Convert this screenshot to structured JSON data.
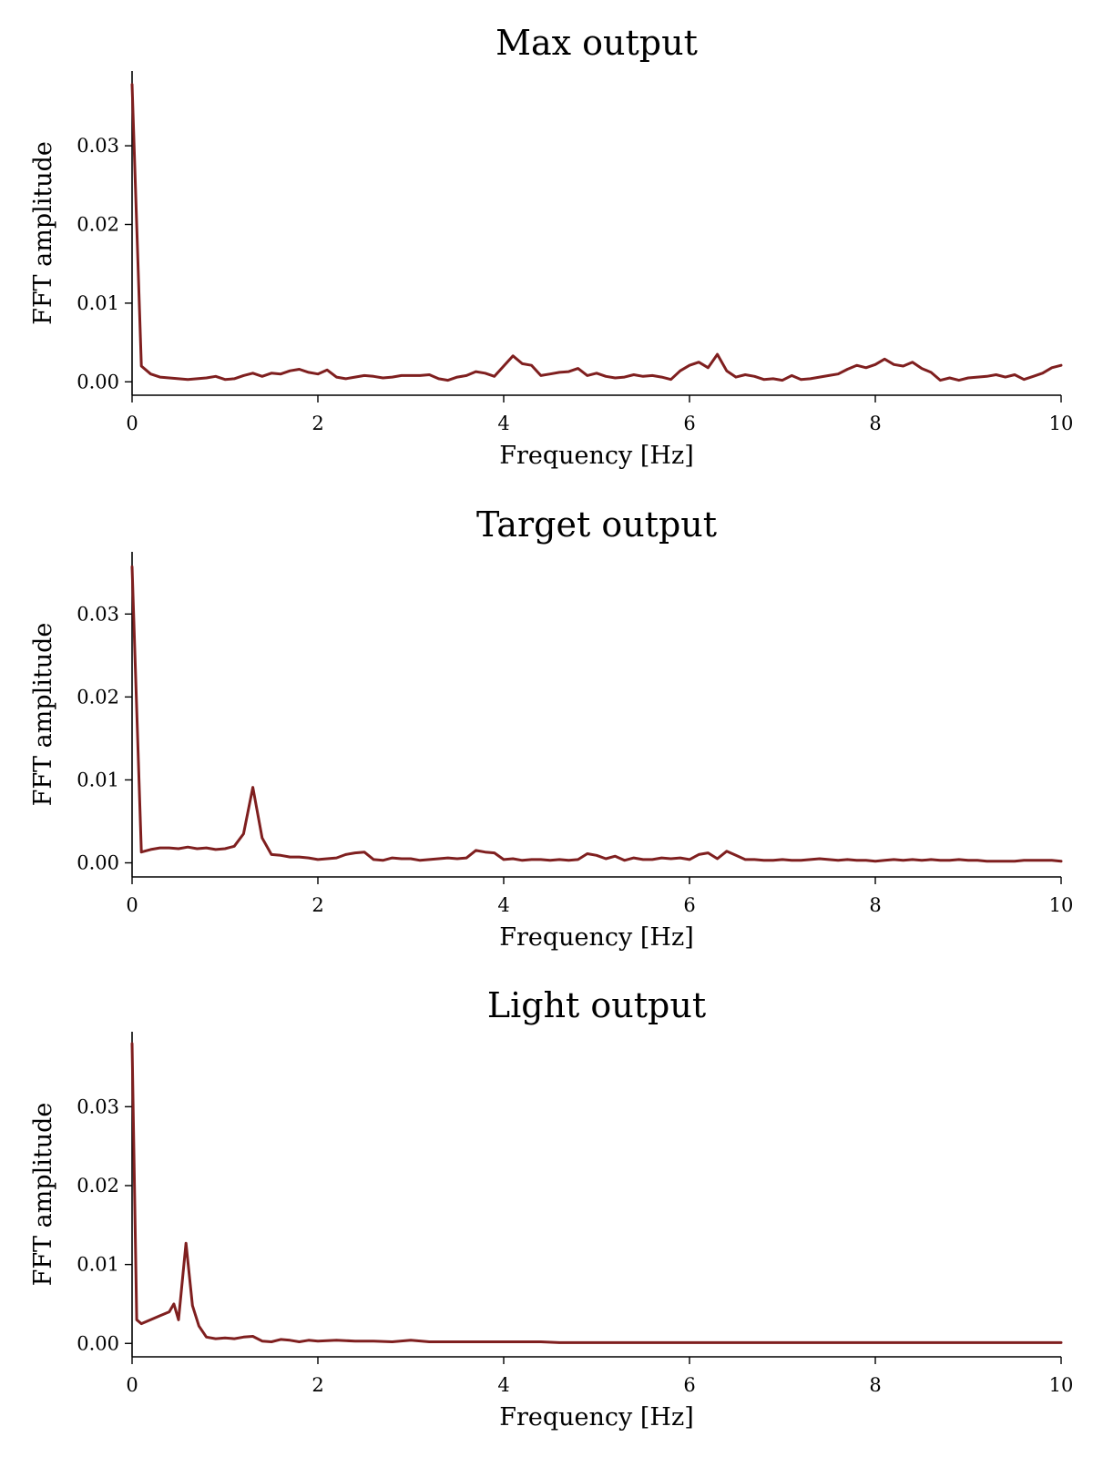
{
  "colors": {
    "line": "#7f1f1f"
  },
  "chart_data": [
    {
      "type": "line",
      "title": "Max output",
      "xlabel": "Frequency [Hz]",
      "ylabel": "FFT amplitude",
      "xlim": [
        0,
        10
      ],
      "ylim": [
        -0.0017,
        0.0395
      ],
      "xticks": [
        0,
        2,
        4,
        6,
        8,
        10
      ],
      "xtick_labels": [
        "0",
        "2",
        "4",
        "6",
        "8",
        "10"
      ],
      "yticks": [
        0,
        0.01,
        0.02,
        0.03
      ],
      "ytick_labels": [
        "0.00",
        "0.01",
        "0.02",
        "0.03"
      ],
      "grid": false,
      "series": [
        {
          "x": [
            0,
            0.1,
            0.2,
            0.3,
            0.4,
            0.5,
            0.6,
            0.7,
            0.8,
            0.9,
            1.0,
            1.1,
            1.2,
            1.3,
            1.4,
            1.5,
            1.6,
            1.7,
            1.8,
            1.9,
            2.0,
            2.1,
            2.2,
            2.3,
            2.4,
            2.5,
            2.6,
            2.7,
            2.8,
            2.9,
            3.0,
            3.1,
            3.2,
            3.3,
            3.4,
            3.5,
            3.6,
            3.7,
            3.8,
            3.9,
            4.0,
            4.1,
            4.2,
            4.3,
            4.4,
            4.5,
            4.6,
            4.7,
            4.8,
            4.9,
            5.0,
            5.1,
            5.2,
            5.3,
            5.4,
            5.5,
            5.6,
            5.7,
            5.8,
            5.9,
            6.0,
            6.1,
            6.2,
            6.3,
            6.4,
            6.5,
            6.6,
            6.7,
            6.8,
            6.9,
            7.0,
            7.1,
            7.2,
            7.3,
            7.4,
            7.5,
            7.6,
            7.7,
            7.8,
            7.9,
            8.0,
            8.1,
            8.2,
            8.3,
            8.4,
            8.5,
            8.6,
            8.7,
            8.8,
            8.9,
            9.0,
            9.1,
            9.2,
            9.3,
            9.4,
            9.5,
            9.6,
            9.7,
            9.8,
            9.9,
            10.0
          ],
          "y": [
            0.0378,
            0.002,
            0.001,
            0.0006,
            0.0005,
            0.0004,
            0.0003,
            0.0004,
            0.0005,
            0.0007,
            0.0003,
            0.0004,
            0.0008,
            0.0011,
            0.0007,
            0.0011,
            0.001,
            0.0014,
            0.0016,
            0.0012,
            0.001,
            0.0015,
            0.0006,
            0.0004,
            0.0006,
            0.0008,
            0.0007,
            0.0005,
            0.0006,
            0.0008,
            0.0008,
            0.0008,
            0.0009,
            0.0004,
            0.0002,
            0.0006,
            0.0008,
            0.0013,
            0.0011,
            0.0007,
            0.002,
            0.0033,
            0.0023,
            0.0021,
            0.0008,
            0.001,
            0.0012,
            0.0013,
            0.0017,
            0.0008,
            0.0011,
            0.0007,
            0.0005,
            0.0006,
            0.0009,
            0.0007,
            0.0008,
            0.0006,
            0.0003,
            0.0014,
            0.0021,
            0.0025,
            0.0018,
            0.0035,
            0.0014,
            0.0006,
            0.0009,
            0.0007,
            0.0003,
            0.0004,
            0.0002,
            0.0008,
            0.0003,
            0.0004,
            0.0006,
            0.0008,
            0.001,
            0.0016,
            0.0021,
            0.0018,
            0.0022,
            0.0029,
            0.0022,
            0.002,
            0.0025,
            0.0017,
            0.0012,
            0.0002,
            0.0005,
            0.0002,
            0.0005,
            0.0006,
            0.0007,
            0.0009,
            0.0006,
            0.0009,
            0.0003,
            0.0007,
            0.0011,
            0.0018,
            0.0021
          ]
        }
      ]
    },
    {
      "type": "line",
      "title": "Target output",
      "xlabel": "Frequency [Hz]",
      "ylabel": "FFT amplitude",
      "xlim": [
        0,
        10
      ],
      "ylim": [
        -0.0017,
        0.0375
      ],
      "xticks": [
        0,
        2,
        4,
        6,
        8,
        10
      ],
      "xtick_labels": [
        "0",
        "2",
        "4",
        "6",
        "8",
        "10"
      ],
      "yticks": [
        0,
        0.01,
        0.02,
        0.03
      ],
      "ytick_labels": [
        "0.00",
        "0.01",
        "0.02",
        "0.03"
      ],
      "grid": false,
      "series": [
        {
          "x": [
            0,
            0.1,
            0.2,
            0.3,
            0.4,
            0.5,
            0.6,
            0.7,
            0.8,
            0.9,
            1.0,
            1.1,
            1.2,
            1.3,
            1.4,
            1.5,
            1.6,
            1.7,
            1.8,
            1.9,
            2.0,
            2.1,
            2.2,
            2.3,
            2.4,
            2.5,
            2.6,
            2.7,
            2.8,
            2.9,
            3.0,
            3.1,
            3.2,
            3.3,
            3.4,
            3.5,
            3.6,
            3.7,
            3.8,
            3.9,
            4.0,
            4.1,
            4.2,
            4.3,
            4.4,
            4.5,
            4.6,
            4.7,
            4.8,
            4.9,
            5.0,
            5.1,
            5.2,
            5.3,
            5.4,
            5.5,
            5.6,
            5.7,
            5.8,
            5.9,
            6.0,
            6.1,
            6.2,
            6.3,
            6.4,
            6.5,
            6.6,
            6.7,
            6.8,
            6.9,
            7.0,
            7.1,
            7.2,
            7.3,
            7.4,
            7.5,
            7.6,
            7.7,
            7.8,
            7.9,
            8.0,
            8.1,
            8.2,
            8.3,
            8.4,
            8.5,
            8.6,
            8.7,
            8.8,
            8.9,
            9.0,
            9.1,
            9.2,
            9.3,
            9.4,
            9.5,
            9.6,
            9.7,
            9.8,
            9.9,
            10.0
          ],
          "y": [
            0.0357,
            0.0013,
            0.0016,
            0.0018,
            0.0018,
            0.0017,
            0.0019,
            0.0017,
            0.0018,
            0.0016,
            0.0017,
            0.002,
            0.0035,
            0.0091,
            0.003,
            0.001,
            0.0009,
            0.0007,
            0.0007,
            0.0006,
            0.0004,
            0.0005,
            0.0006,
            0.001,
            0.0012,
            0.0013,
            0.0004,
            0.0003,
            0.0006,
            0.0005,
            0.0005,
            0.0003,
            0.0004,
            0.0005,
            0.0006,
            0.0005,
            0.0006,
            0.0015,
            0.0013,
            0.0012,
            0.0004,
            0.0005,
            0.0003,
            0.0004,
            0.0004,
            0.0003,
            0.0004,
            0.0003,
            0.0004,
            0.0011,
            0.0009,
            0.0005,
            0.0008,
            0.0003,
            0.0006,
            0.0004,
            0.0004,
            0.0006,
            0.0005,
            0.0006,
            0.0004,
            0.001,
            0.0012,
            0.0005,
            0.0014,
            0.0009,
            0.0004,
            0.0004,
            0.0003,
            0.0003,
            0.0004,
            0.0003,
            0.0003,
            0.0004,
            0.0005,
            0.0004,
            0.0003,
            0.0004,
            0.0003,
            0.0003,
            0.0002,
            0.0003,
            0.0004,
            0.0003,
            0.0004,
            0.0003,
            0.0004,
            0.0003,
            0.0003,
            0.0004,
            0.0003,
            0.0003,
            0.0002,
            0.0002,
            0.0002,
            0.0002,
            0.0003,
            0.0003,
            0.0003,
            0.0003,
            0.0002
          ]
        }
      ]
    },
    {
      "type": "line",
      "title": "Light output",
      "xlabel": "Frequency [Hz]",
      "ylabel": "FFT amplitude",
      "xlim": [
        0,
        10
      ],
      "ylim": [
        -0.0017,
        0.0395
      ],
      "xticks": [
        0,
        2,
        4,
        6,
        8,
        10
      ],
      "xtick_labels": [
        "0",
        "2",
        "4",
        "6",
        "8",
        "10"
      ],
      "yticks": [
        0,
        0.01,
        0.02,
        0.03
      ],
      "ytick_labels": [
        "0.00",
        "0.01",
        "0.02",
        "0.03"
      ],
      "grid": false,
      "series": [
        {
          "x": [
            0,
            0.05,
            0.1,
            0.2,
            0.3,
            0.4,
            0.45,
            0.5,
            0.58,
            0.65,
            0.72,
            0.8,
            0.9,
            1.0,
            1.1,
            1.2,
            1.3,
            1.4,
            1.5,
            1.6,
            1.7,
            1.8,
            1.9,
            2.0,
            2.2,
            2.4,
            2.6,
            2.8,
            3.0,
            3.2,
            3.4,
            3.6,
            3.8,
            4.0,
            4.2,
            4.4,
            4.6,
            4.8,
            5.0,
            5.5,
            6.0,
            6.5,
            7.0,
            7.5,
            8.0,
            8.5,
            9.0,
            9.5,
            10.0
          ],
          "y": [
            0.038,
            0.003,
            0.0025,
            0.003,
            0.0035,
            0.004,
            0.005,
            0.003,
            0.0127,
            0.0048,
            0.0022,
            0.0008,
            0.0006,
            0.0007,
            0.0006,
            0.0008,
            0.0009,
            0.0003,
            0.0002,
            0.0005,
            0.0004,
            0.0002,
            0.0004,
            0.0003,
            0.0004,
            0.0003,
            0.0003,
            0.0002,
            0.0004,
            0.0002,
            0.0002,
            0.0002,
            0.0002,
            0.0002,
            0.0002,
            0.0002,
            0.0001,
            0.0001,
            0.0001,
            0.0001,
            0.0001,
            0.0001,
            0.0001,
            0.0001,
            0.0001,
            0.0001,
            0.0001,
            0.0001,
            0.0001
          ]
        }
      ]
    }
  ]
}
